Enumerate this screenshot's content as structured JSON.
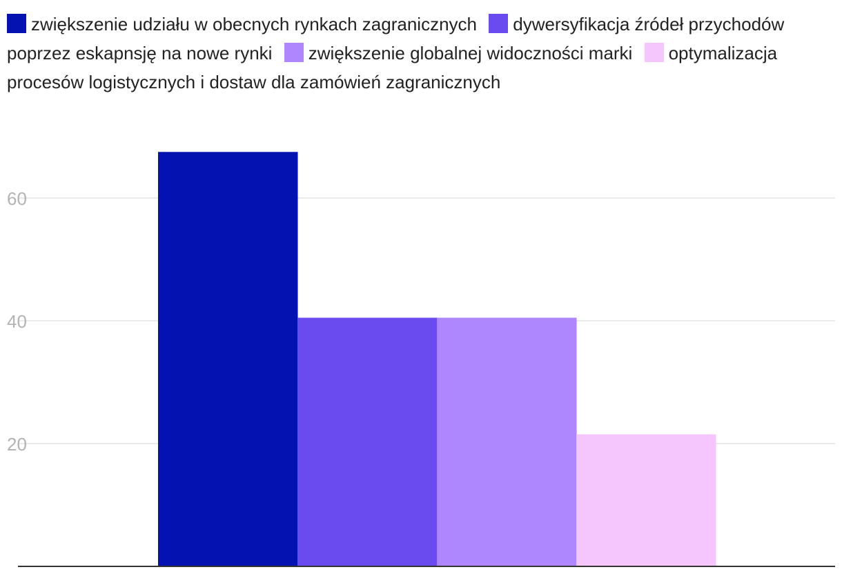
{
  "chart_data": {
    "type": "bar",
    "title": "",
    "xlabel": "",
    "ylabel": "",
    "ylim": [
      0,
      70
    ],
    "yticks": [
      20,
      40,
      60
    ],
    "grid": true,
    "legend_position": "top",
    "series": [
      {
        "name": "zwiększenie udziału w obecnych rynkach zagranicznych",
        "value": 67.5,
        "color": "#0312b0"
      },
      {
        "name": "dywersyfikacja źródeł przychodów poprzez eskapnsję na nowe rynki",
        "value": 40.5,
        "color": "#6a4bef"
      },
      {
        "name": "zwiększenie globalnej widoczności marki",
        "value": 40.5,
        "color": "#ae87ff"
      },
      {
        "name": "optymalizacja procesów logistycznych i dostaw dla zamówień zagranicznych",
        "value": 21.5,
        "color": "#f5c6fe"
      }
    ]
  }
}
